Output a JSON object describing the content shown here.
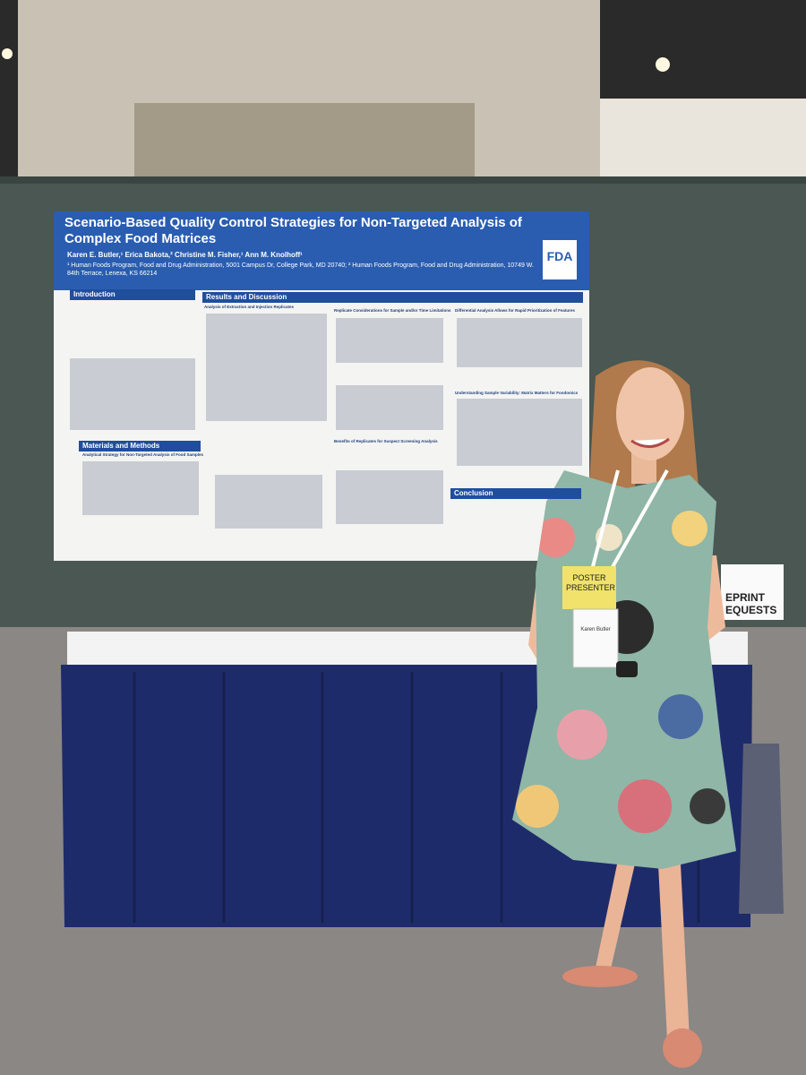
{
  "poster": {
    "title": "Scenario-Based Quality Control Strategies for Non-Targeted Analysis of Complex Food Matrices",
    "authors": "Karen E. Butler,¹ Erica Bakota,² Christine M. Fisher,¹ Ann M. Knolhoff¹",
    "affiliations": "¹ Human Foods Program, Food and Drug Administration, 5001 Campus Dr, College Park, MD 20740; ² Human Foods Program, Food and Drug Administration, 10749 W. 84th Terrace, Lenexa, KS 66214",
    "logo": "FDA",
    "sections": {
      "introduction": "Introduction",
      "results": "Results and Discussion",
      "methods": "Materials and Methods",
      "conclusion": "Conclusion"
    },
    "subheadings": [
      "Analysis of Extraction and Injection Replicates",
      "Replicate Considerations for Sample and/or Time Limitations",
      "Differential Analysis Allows for Rapid Prioritization of Features",
      "Understanding Sample Variability: Matrix Matters for Foodomics",
      "Benefits of Replicates for Suspect Screening Analysis",
      "Analytical Strategy for Non-Targeted Analysis of Food Samples"
    ]
  },
  "badge": {
    "ribbon": "POSTER PRESENTER",
    "name": "Karen Butler"
  },
  "sign": {
    "lines": [
      "EPRINT",
      "EQUESTS"
    ]
  }
}
